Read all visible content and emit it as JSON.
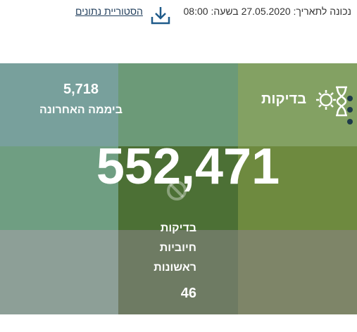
{
  "header": {
    "updated": "נכונה לתאריך: 27.05.2020 בשעה: 08:00",
    "history_link": "הסטוריית נתונים"
  },
  "card": {
    "title": "בדיקות",
    "last_day_value": "5,718",
    "last_day_label": "ביממה האחרונה",
    "total": "552,471",
    "positive_label": [
      "בדיקות",
      "חיוביות",
      "ראשונות"
    ],
    "positive_value": "46"
  }
}
